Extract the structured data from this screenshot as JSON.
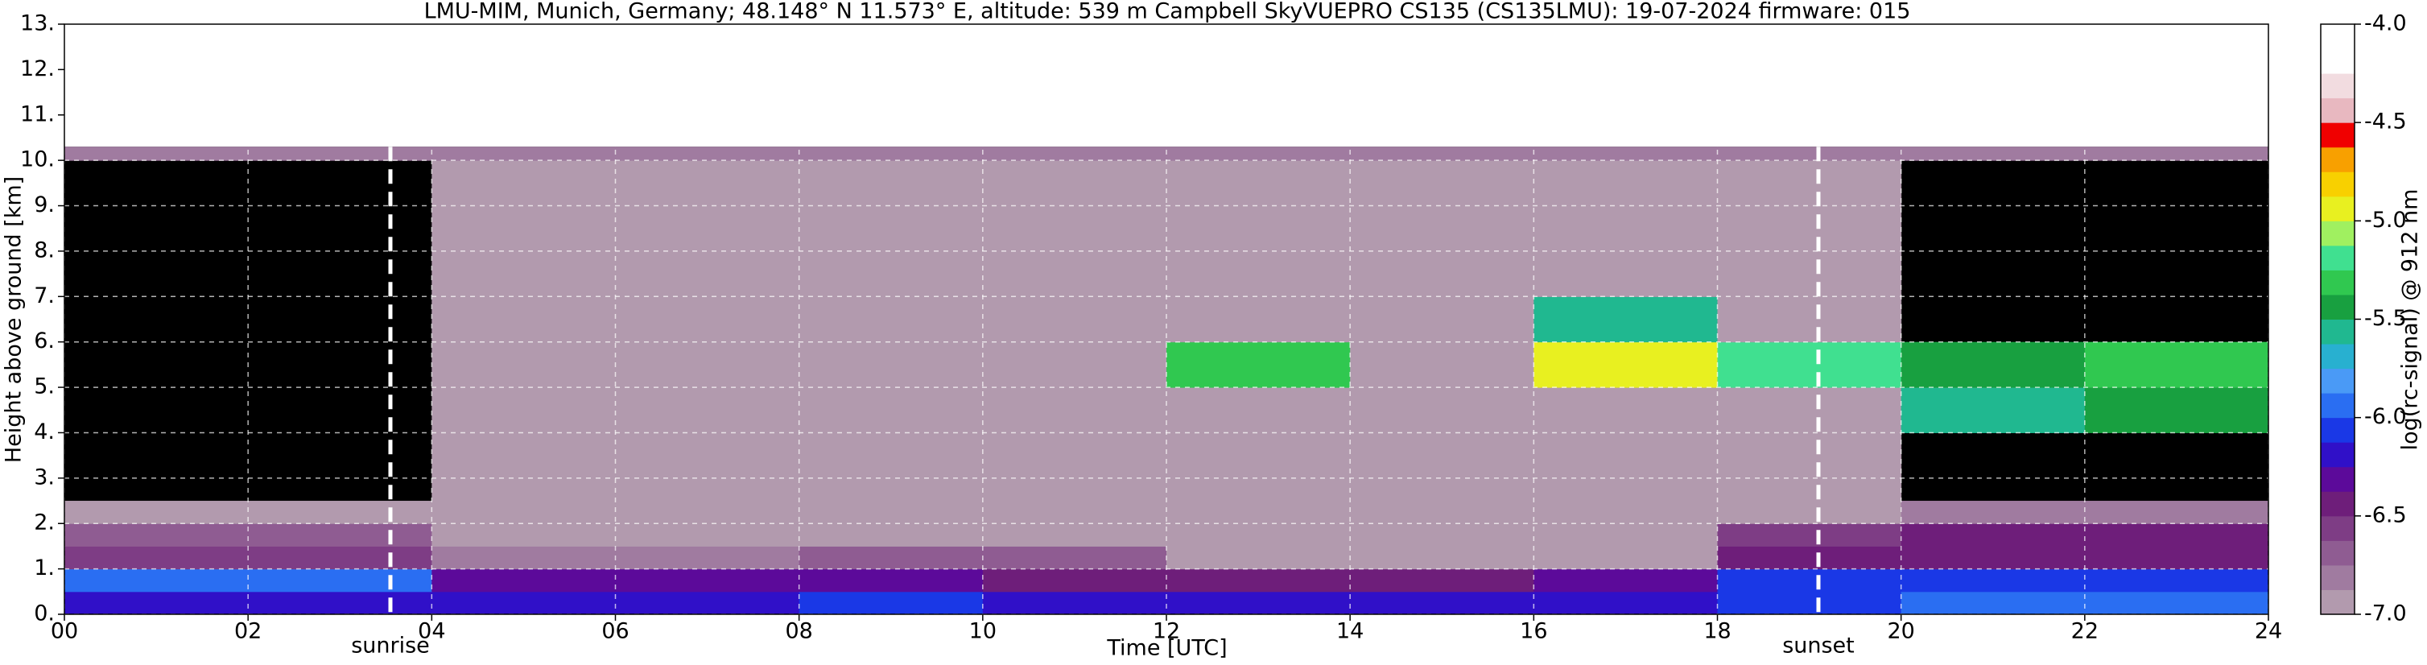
{
  "chart_data": {
    "type": "heatmap",
    "title": "LMU-MIM, Munich, Germany; 48.148° N 11.573° E, altitude: 539 m    Campbell SkyVUEPRO CS135 (CS135LMU): 19-07-2024    firmware: 015",
    "x_label": "Time [UTC]",
    "y_label": "Height above ground [km]",
    "colorbar_label": "log(rc-signal) @ 912 nm",
    "xlim": [
      0,
      24
    ],
    "ylim": [
      0,
      13
    ],
    "xticks": [
      {
        "value": 0,
        "label": "00"
      },
      {
        "value": 2,
        "label": "02"
      },
      {
        "value": 4,
        "label": "04"
      },
      {
        "value": 6,
        "label": "06"
      },
      {
        "value": 8,
        "label": "08"
      },
      {
        "value": 10,
        "label": "10"
      },
      {
        "value": 12,
        "label": "12"
      },
      {
        "value": 14,
        "label": "14"
      },
      {
        "value": 16,
        "label": "16"
      },
      {
        "value": 18,
        "label": "18"
      },
      {
        "value": 20,
        "label": "20"
      },
      {
        "value": 22,
        "label": "22"
      },
      {
        "value": 24,
        "label": "24"
      }
    ],
    "yticks": [
      {
        "value": 0,
        "label": "0."
      },
      {
        "value": 1,
        "label": "1."
      },
      {
        "value": 2,
        "label": "2."
      },
      {
        "value": 3,
        "label": "3."
      },
      {
        "value": 4,
        "label": "4."
      },
      {
        "value": 5,
        "label": "5."
      },
      {
        "value": 6,
        "label": "6."
      },
      {
        "value": 7,
        "label": "7."
      },
      {
        "value": 8,
        "label": "8."
      },
      {
        "value": 9,
        "label": "9."
      },
      {
        "value": 10,
        "label": "10."
      },
      {
        "value": 11,
        "label": "11."
      },
      {
        "value": 12,
        "label": "12."
      },
      {
        "value": 13,
        "label": "13."
      }
    ],
    "grid": true,
    "clim": [
      -7,
      -4
    ],
    "cticks": [
      {
        "value": -7,
        "label": "-7.0"
      },
      {
        "value": -6.5,
        "label": "-6.5"
      },
      {
        "value": -6,
        "label": "-6.0"
      },
      {
        "value": -5.5,
        "label": "-5.5"
      },
      {
        "value": -5,
        "label": "-5.0"
      },
      {
        "value": -4.5,
        "label": "-4.5"
      },
      {
        "value": -4,
        "label": "-4.0"
      }
    ],
    "colors": [
      "#b29aae",
      "#a07ba0",
      "#8f5c92",
      "#7e3d85",
      "#6e1e7a",
      "#5c0a9a",
      "#3010c8",
      "#1a38e6",
      "#2a6ef2",
      "#4a9af6",
      "#28b0d0",
      "#20b890",
      "#18a040",
      "#30c850",
      "#40e090",
      "#a0f060",
      "#e8f020",
      "#f8d000",
      "#f8a000",
      "#f00000",
      "#e8b8c0",
      "#f2dce0",
      "#ffffff",
      "#ffffff"
    ],
    "x_edges": [
      0,
      2,
      4,
      6,
      8,
      10,
      12,
      14,
      16,
      18,
      20,
      22,
      24
    ],
    "y_edges": [
      0,
      0.5,
      1,
      1.5,
      2,
      2.5,
      3,
      4,
      5,
      6,
      7,
      8,
      9,
      10,
      10.3
    ],
    "values": [
      [
        -6.2,
        -6.2,
        -6.2,
        -6.2,
        -6.1,
        -6.2,
        -6.2,
        -6.2,
        -6.2,
        -6.1,
        -6.0,
        -6.0
      ],
      [
        -6.0,
        -6.0,
        -6.3,
        -6.3,
        -6.3,
        -6.4,
        -6.4,
        -6.4,
        -6.3,
        -6.1,
        -6.1,
        -6.1
      ],
      [
        -6.6,
        -6.6,
        -6.8,
        -6.8,
        -6.7,
        -6.7,
        -6.9,
        -6.9,
        -6.9,
        -6.5,
        -6.4,
        -6.4
      ],
      [
        -6.7,
        -6.7,
        -6.9,
        -6.9,
        -6.9,
        -6.9,
        -6.9,
        -6.9,
        -6.9,
        -6.6,
        -6.5,
        -6.5
      ],
      [
        -6.9,
        -6.9,
        -6.9,
        -6.9,
        -6.9,
        -6.9,
        -6.9,
        -6.9,
        -6.9,
        -6.9,
        -6.8,
        -6.8
      ],
      [
        null,
        null,
        -6.9,
        -6.9,
        -6.9,
        -6.9,
        -6.9,
        -6.9,
        -6.9,
        -6.9,
        null,
        null
      ],
      [
        null,
        null,
        -6.9,
        -6.9,
        -6.9,
        -6.9,
        -6.9,
        -6.9,
        -6.9,
        -6.9,
        null,
        null
      ],
      [
        null,
        null,
        -6.9,
        -6.9,
        -6.9,
        -6.9,
        -6.9,
        -6.9,
        -6.9,
        -6.9,
        -5.6,
        -5.4
      ],
      [
        null,
        null,
        -6.9,
        -6.9,
        -6.9,
        -6.9,
        -5.3,
        -6.9,
        -5.0,
        -5.2,
        -5.4,
        -5.3
      ],
      [
        null,
        null,
        -6.9,
        -6.9,
        -6.9,
        -6.9,
        -6.9,
        -6.9,
        -5.6,
        -6.9,
        null,
        null
      ],
      [
        null,
        null,
        -6.9,
        -6.9,
        -6.9,
        -6.9,
        -6.9,
        -6.9,
        -6.9,
        -6.9,
        null,
        null
      ],
      [
        null,
        null,
        -6.9,
        -6.9,
        -6.9,
        -6.9,
        -6.9,
        -6.9,
        -6.9,
        -6.9,
        null,
        null
      ],
      [
        null,
        null,
        -6.9,
        -6.9,
        -6.9,
        -6.9,
        -6.9,
        -6.9,
        -6.9,
        -6.9,
        null,
        null
      ],
      [
        -6.8,
        -6.8,
        -6.8,
        -6.8,
        -6.8,
        -6.8,
        -6.8,
        -6.8,
        -6.8,
        -6.8,
        -6.8,
        -6.8
      ]
    ],
    "annotations": [
      {
        "text": "sunrise",
        "x": 3.55
      },
      {
        "text": "sunset",
        "x": 19.1
      }
    ]
  }
}
